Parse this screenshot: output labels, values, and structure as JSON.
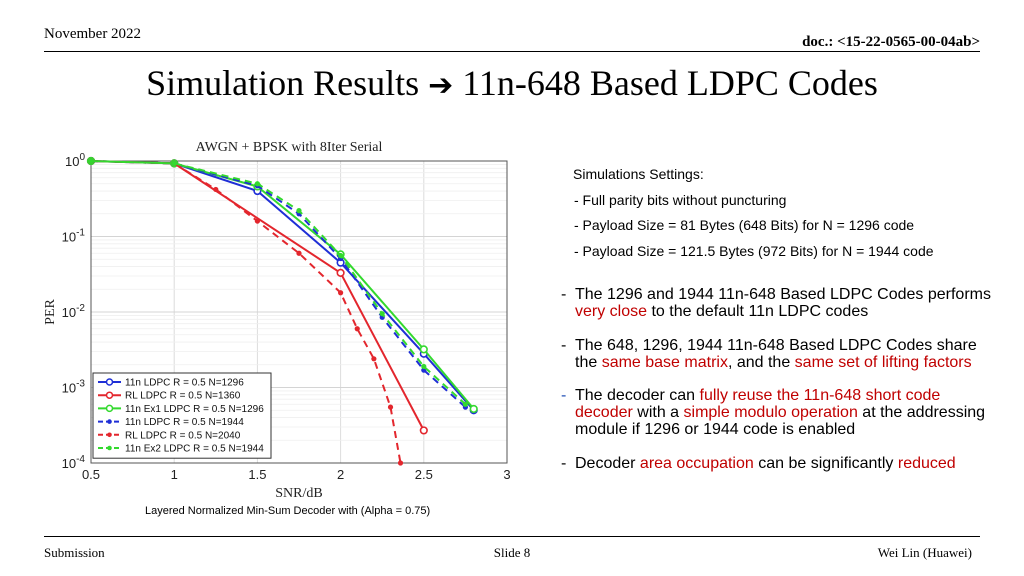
{
  "header": {
    "date": "November 2022",
    "doc": "doc.: <15-22-0565-00-04ab>"
  },
  "title": {
    "text": "Simulation Results",
    "arrow": "➔",
    "rest": "11n-648 Based LDPC Codes"
  },
  "chart_data": {
    "type": "line",
    "title": "AWGN + BPSK with 8Iter Serial",
    "xlabel": "SNR/dB",
    "ylabel": "PER",
    "xlim": [
      0.5,
      3
    ],
    "ylim": [
      0.0001,
      1
    ],
    "yscale": "log",
    "grid": true,
    "legend_placement": "bottom-left",
    "xticks": [
      "0.5",
      "1",
      "1.5",
      "2",
      "2.5",
      "3"
    ],
    "series": [
      {
        "name": "11n LDPC R = 0.5 N=1296",
        "color": "#1f2fd6",
        "dash": "solid",
        "marker": "circle",
        "x": [
          0.5,
          1,
          1.5,
          2,
          2.5,
          2.8
        ],
        "y": [
          1,
          0.93,
          0.4,
          0.045,
          0.0028,
          0.0005
        ]
      },
      {
        "name": "RL LDPC R = 0.5 N=1360",
        "color": "#e3262d",
        "dash": "solid",
        "marker": "circle",
        "x": [
          0.5,
          1,
          2,
          2.5
        ],
        "y": [
          1,
          0.93,
          0.033,
          0.00027
        ]
      },
      {
        "name": "11n Ex1 LDPC R = 0.5 N=1296",
        "color": "#33d92e",
        "dash": "solid",
        "marker": "circle",
        "x": [
          0.5,
          1,
          1.5,
          2,
          2.5,
          2.8
        ],
        "y": [
          1,
          0.93,
          0.46,
          0.058,
          0.0032,
          0.00052
        ]
      },
      {
        "name": "11n LDPC R = 0.5 N=1944",
        "color": "#1f2fd6",
        "dash": "dashed",
        "marker": "dot",
        "x": [
          0.5,
          1,
          1.5,
          1.75,
          2,
          2.25,
          2.5,
          2.75
        ],
        "y": [
          1,
          0.93,
          0.47,
          0.2,
          0.051,
          0.0085,
          0.0017,
          0.00055
        ]
      },
      {
        "name": "RL LDPC R = 0.5 N=2040",
        "color": "#e3262d",
        "dash": "dashed",
        "marker": "dot",
        "x": [
          0.5,
          1,
          1.25,
          1.5,
          1.75,
          2,
          2.1,
          2.2,
          2.3,
          2.36
        ],
        "y": [
          1,
          0.93,
          0.42,
          0.16,
          0.06,
          0.018,
          0.006,
          0.0024,
          0.00055,
          0.0001
        ]
      },
      {
        "name": "11n Ex2 LDPC R = 0.5 N=1944",
        "color": "#33d92e",
        "dash": "dashed",
        "marker": "dot",
        "x": [
          0.5,
          1,
          1.5,
          1.75,
          2,
          2.25,
          2.5,
          2.75
        ],
        "y": [
          1,
          0.93,
          0.5,
          0.22,
          0.056,
          0.0095,
          0.0019,
          0.0006
        ]
      }
    ]
  },
  "caption": "Layered Normalized Min-Sum Decoder with (Alpha = 0.75)",
  "settings": {
    "heading": "Simulations Settings:",
    "items": [
      "-  Full parity bits without puncturing",
      "-  Payload Size = 81 Bytes (648 Bits) for N = 1296 code",
      "-  Payload Size = 121.5 Bytes (972 Bits) for N = 1944 code"
    ]
  },
  "bullets": {
    "b1": {
      "t1": "The 1296 and 1944 11n-648 Based LDPC Codes performs ",
      "r1": "very close",
      "t2": " to the default 11n LDPC codes"
    },
    "b2": {
      "t1": "The 648, 1296, 1944 11n-648 Based LDPC Codes share the ",
      "r1": "same base matrix",
      "t2": ", and the ",
      "r2": "same set of lifting factors"
    },
    "b3": {
      "t1": "The decoder can ",
      "r1": "fully reuse the 11n-648 short code decoder",
      "t2": " with a ",
      "r2": "simple modulo operation",
      "t3": " at the addressing module if 1296 or 1944 code is enabled"
    },
    "b4": {
      "t1": "Decoder ",
      "r1": "area occupation",
      "t2": " can be significantly ",
      "r2": "reduced"
    },
    "dash": "-"
  },
  "footer": {
    "left": "Submission",
    "middle": "Slide 8",
    "right": "Wei Lin (Huawei)"
  }
}
